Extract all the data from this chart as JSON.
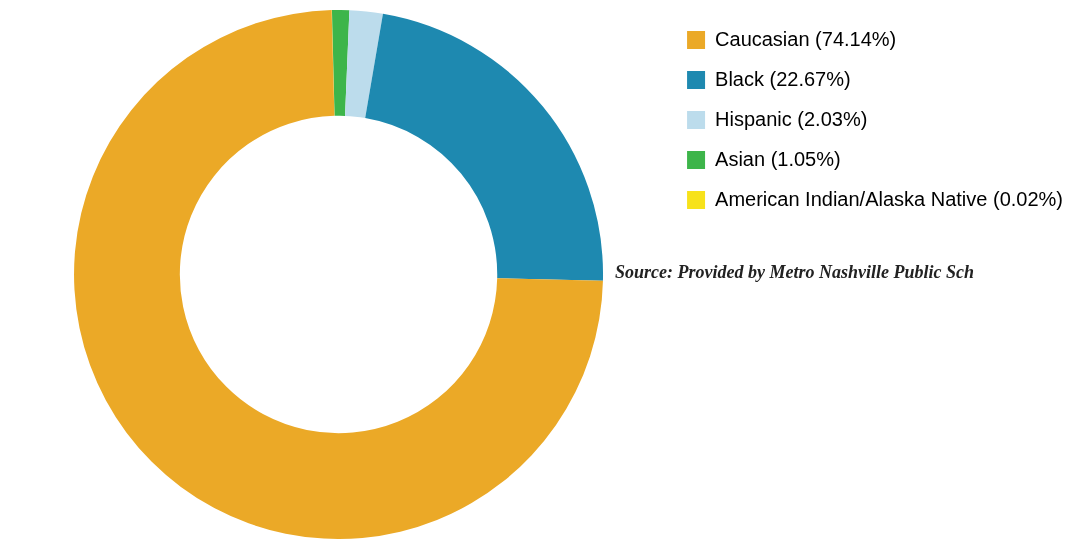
{
  "chart_data": {
    "type": "donut",
    "categories": [
      "Caucasian (74.14%)",
      "Black (22.67%)",
      "Hispanic (2.03%)",
      "Asian (1.05%)",
      "American Indian/Alaska Native (0.02%)"
    ],
    "values": [
      74.14,
      22.67,
      2.03,
      1.05,
      0.02
    ],
    "colors": [
      "#eba927",
      "#1e89b0",
      "#bcdcec",
      "#3db54a",
      "#f7e21b"
    ],
    "legend": "right",
    "annotations": [
      "Source: Provided by Metro Nashville Public Sch"
    ]
  }
}
